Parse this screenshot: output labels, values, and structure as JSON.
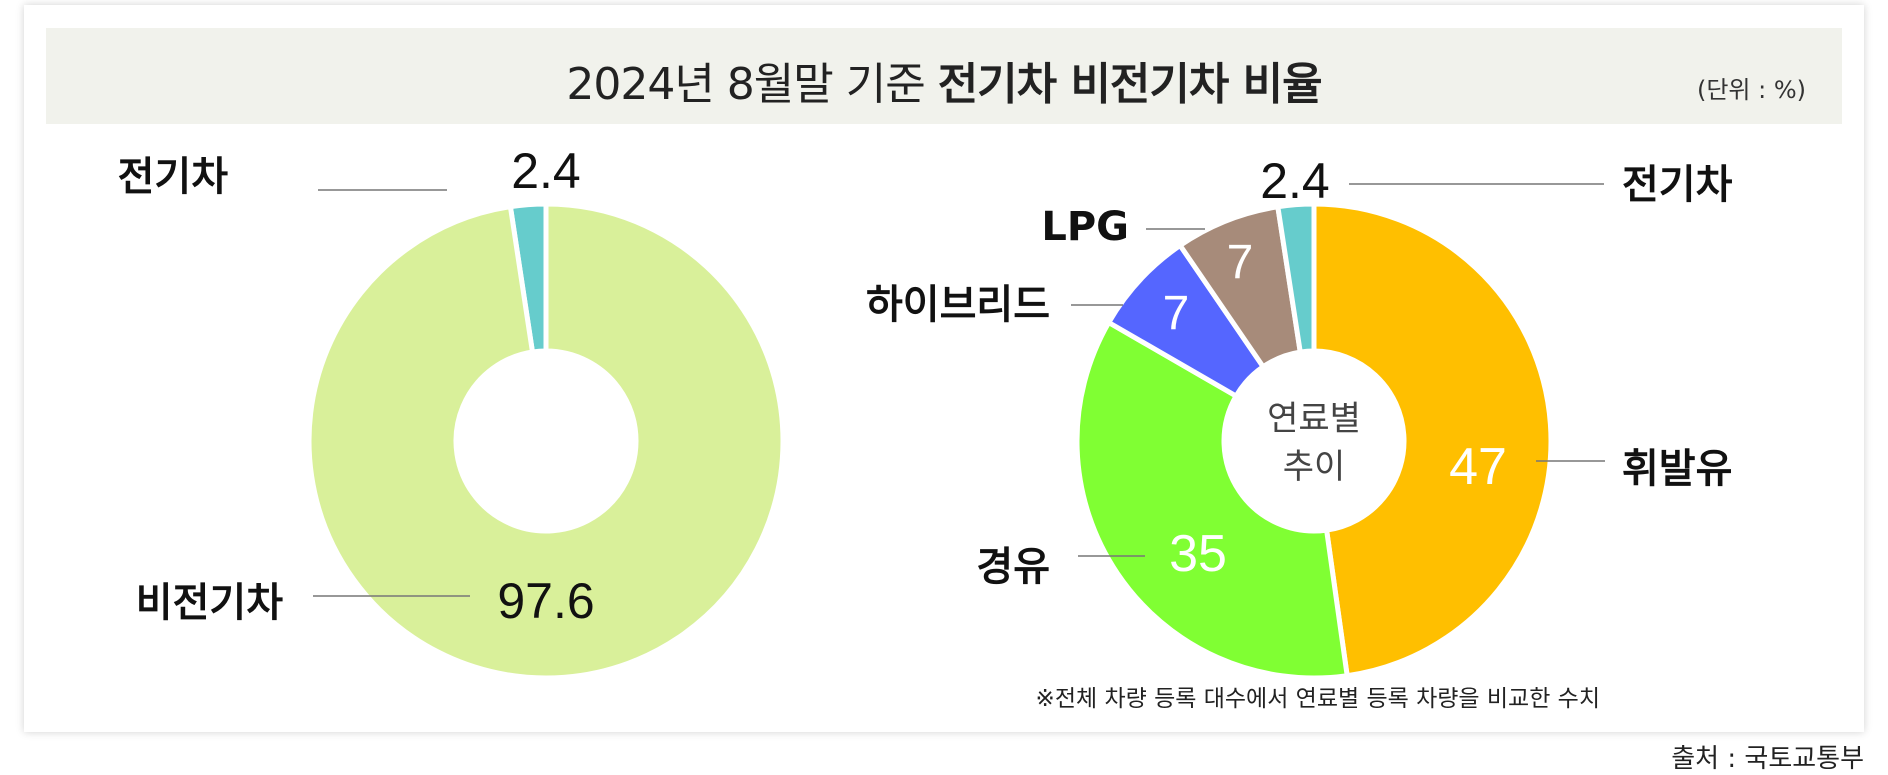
{
  "header": {
    "title_lead": "2024년 8월말 기준",
    "title_emph": "전기차 비전기차 비율",
    "unit": "(단위 : %)"
  },
  "chart_data": [
    {
      "type": "donut",
      "series": [
        {
          "label": "전기차",
          "value": 2.4,
          "color": "#66cccc"
        },
        {
          "label": "비전기차",
          "value": 97.6,
          "color": "#d9f09a"
        }
      ]
    },
    {
      "type": "donut",
      "center_label": [
        "연료별",
        "추이"
      ],
      "series": [
        {
          "label": "휘발유",
          "value": 47,
          "color": "#ffbf00"
        },
        {
          "label": "경유",
          "value": 35,
          "color": "#80ff33"
        },
        {
          "label": "하이브리드",
          "value": 7,
          "color": "#5566ff"
        },
        {
          "label": "LPG",
          "value": 7,
          "color": "#a78b7a"
        },
        {
          "label": "전기차",
          "value": 2.4,
          "color": "#66cccc"
        }
      ]
    }
  ],
  "footnote": "※전체 차량 등록 대수에서 연료별 등록 차량을 비교한 수치",
  "source": "출처 : 국토교통부"
}
